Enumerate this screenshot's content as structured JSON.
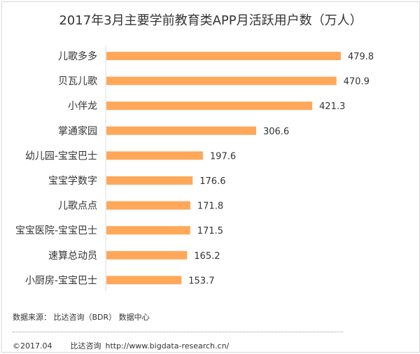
{
  "chart_data": {
    "type": "bar",
    "orientation": "horizontal",
    "title": "2017年3月主要学前教育类APP月活跃用户数（万人）",
    "categories": [
      "儿歌多多",
      "贝瓦儿歌",
      "小伴龙",
      "掌通家园",
      "幼儿园-宝宝巴士",
      "宝宝学数字",
      "儿歌点点",
      "宝宝医院-宝宝巴士",
      "速算总动员",
      "小厨房-宝宝巴士"
    ],
    "values": [
      479.8,
      470.9,
      421.3,
      306.6,
      197.6,
      176.6,
      171.8,
      171.5,
      165.2,
      153.7
    ],
    "labels": [
      "479.8",
      "470.9",
      "421.3",
      "306.6",
      "197.6",
      "176.6",
      "171.8",
      "171.5",
      "165.2",
      "153.7"
    ],
    "xlim": [
      0,
      480
    ],
    "grid": false,
    "bar_color": "#FFA85A"
  },
  "footer": {
    "source": "数据来源： 比达咨询（BDR） 数据中心",
    "copyright": "©2017.04",
    "company": "比达咨询",
    "url": "http://www.bigdata-research.cn/"
  }
}
